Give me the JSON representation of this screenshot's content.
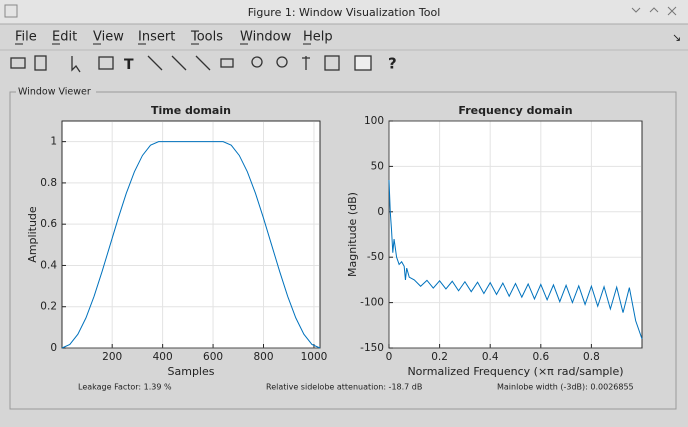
{
  "window": {
    "title": "Figure 1: Window Visualization Tool"
  },
  "menu": [
    "File",
    "Edit",
    "View",
    "Insert",
    "Tools",
    "Window",
    "Help"
  ],
  "panel": {
    "title": "Window Viewer"
  },
  "chart_data": [
    {
      "type": "line",
      "title": "Time domain",
      "x_label": "Samples",
      "y_label": "Amplitude",
      "color": "#0072bd",
      "grid": true,
      "xlim": [
        1,
        1024
      ],
      "ylim": [
        0,
        1.1
      ],
      "xticks": [
        200,
        400,
        600,
        800,
        1000
      ],
      "yticks": [
        0,
        0.2,
        0.4,
        0.6,
        0.8,
        1
      ],
      "x": [
        1,
        32,
        64,
        96,
        128,
        160,
        192,
        224,
        256,
        288,
        320,
        352,
        384,
        416,
        448,
        480,
        512,
        544,
        576,
        608,
        640,
        672,
        704,
        736,
        768,
        800,
        832,
        864,
        896,
        928,
        960,
        992,
        1024
      ],
      "values": [
        0,
        0.017,
        0.067,
        0.146,
        0.25,
        0.371,
        0.5,
        0.629,
        0.75,
        0.854,
        0.933,
        0.983,
        1,
        1,
        1,
        1,
        1,
        1,
        1,
        1,
        1,
        0.983,
        0.933,
        0.854,
        0.75,
        0.629,
        0.5,
        0.371,
        0.25,
        0.146,
        0.067,
        0.017,
        0
      ]
    },
    {
      "type": "line",
      "title": "Frequency domain",
      "x_label": "Normalized Frequency  (×π rad/sample)",
      "y_label": "Magnitude (dB)",
      "color": "#0072bd",
      "grid": true,
      "xlim": [
        0,
        1
      ],
      "ylim": [
        -150,
        100
      ],
      "xticks": [
        0,
        0.2,
        0.4,
        0.6,
        0.8
      ],
      "yticks": [
        -150,
        -100,
        -50,
        0,
        50,
        100
      ],
      "x": [
        0,
        0.005,
        0.01,
        0.015,
        0.02,
        0.03,
        0.04,
        0.05,
        0.06,
        0.065,
        0.07,
        0.08,
        0.1,
        0.125,
        0.15,
        0.175,
        0.2,
        0.225,
        0.25,
        0.275,
        0.3,
        0.325,
        0.35,
        0.375,
        0.4,
        0.425,
        0.45,
        0.475,
        0.5,
        0.525,
        0.55,
        0.575,
        0.6,
        0.625,
        0.65,
        0.675,
        0.7,
        0.725,
        0.75,
        0.775,
        0.8,
        0.825,
        0.85,
        0.875,
        0.9,
        0.925,
        0.95,
        0.975,
        1
      ],
      "values": [
        35,
        0,
        -20,
        -45,
        -30,
        -50,
        -58,
        -55,
        -60,
        -75,
        -62,
        -72,
        -75,
        -82,
        -75.5,
        -84,
        -76,
        -85,
        -76.5,
        -87,
        -77,
        -88,
        -77.5,
        -90,
        -78,
        -91,
        -78.5,
        -93,
        -79,
        -94,
        -79.5,
        -96,
        -80,
        -97,
        -80.5,
        -99,
        -81,
        -100,
        -81.5,
        -102,
        -82,
        -104,
        -82.5,
        -107,
        -83,
        -111,
        -83.5,
        -120,
        -140
      ]
    }
  ],
  "status": [
    "Leakage Factor: 1.39 %",
    "Relative sidelobe attenuation: -18.7 dB",
    "Mainlobe width (-3dB): 0.0026855"
  ]
}
